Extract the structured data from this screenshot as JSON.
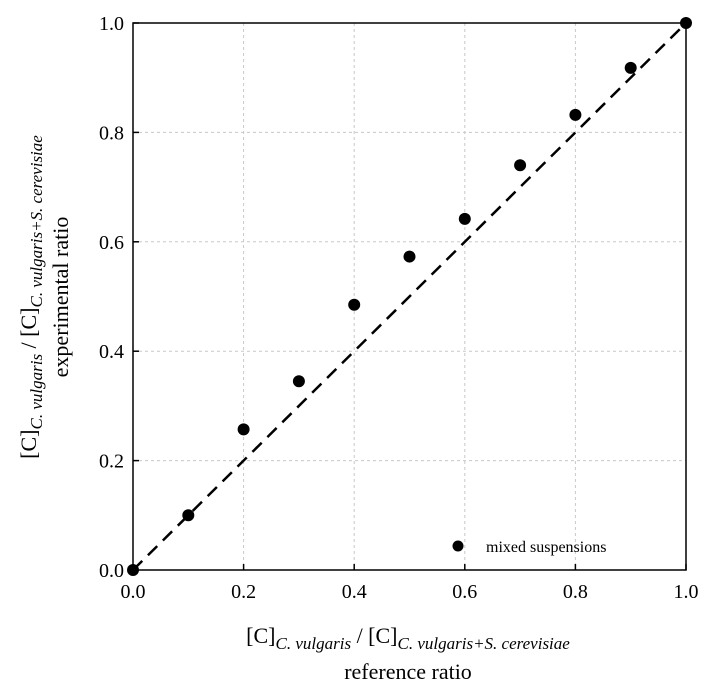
{
  "chart_data": {
    "type": "scatter",
    "title": "",
    "xlabel": {
      "line1": {
        "base": "[C]",
        "sub": "C. vulgaris",
        "sep": " / [C]",
        "sub2": "C. vulgaris+S. cerevisiae"
      },
      "line2": "reference ratio"
    },
    "ylabel": {
      "line1": {
        "base": "[C]",
        "sub": "C. vulgaris",
        "sep": " / [C]",
        "sub2": "C. vulgaris+S. cerevisiae"
      },
      "line2": "experimental ratio"
    },
    "xlim": [
      0.0,
      1.0
    ],
    "ylim": [
      0.0,
      1.0
    ],
    "x_ticks": [
      "0.0",
      "0.2",
      "0.4",
      "0.6",
      "0.8",
      "1.0"
    ],
    "y_ticks": [
      "0.0",
      "0.2",
      "0.4",
      "0.6",
      "0.8",
      "1.0"
    ],
    "grid": true,
    "legend_position": "bottom-right",
    "series": [
      {
        "name": "mixed suspensions",
        "color": "#000000",
        "marker": "circle",
        "x": [
          0.0,
          0.1,
          0.2,
          0.3,
          0.4,
          0.5,
          0.6,
          0.7,
          0.8,
          0.9,
          1.0
        ],
        "y": [
          0.0,
          0.1,
          0.257,
          0.345,
          0.485,
          0.573,
          0.642,
          0.74,
          0.832,
          0.918,
          1.0
        ]
      }
    ],
    "reference_line": {
      "style": "dashed",
      "color": "#000000",
      "x": [
        0.0,
        1.0
      ],
      "y": [
        0.0,
        1.0
      ]
    }
  }
}
